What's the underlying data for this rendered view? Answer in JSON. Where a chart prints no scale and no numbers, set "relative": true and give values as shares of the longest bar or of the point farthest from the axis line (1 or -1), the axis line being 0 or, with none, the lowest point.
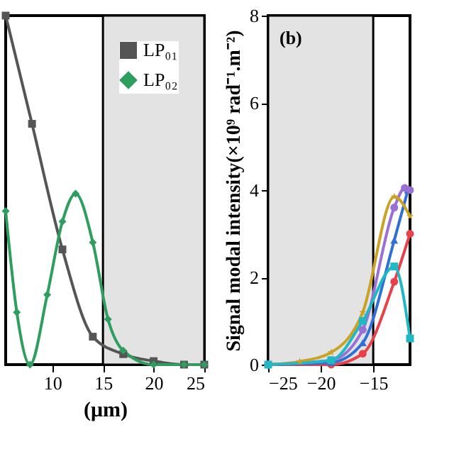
{
  "chart_data": [
    {
      "type": "line",
      "xlabel": "(μm)",
      "relative": true,
      "tick_labels": "x",
      "grid": false,
      "legend": "top right",
      "xlim": [
        5.4,
        25
      ],
      "xticks": [
        10,
        15,
        20,
        25
      ],
      "bands": [
        {
          "axis": "x",
          "from": 15,
          "to": 25,
          "color": "#e3e3e3"
        }
      ],
      "series": [
        {
          "name": "LP₀₁",
          "color": "#555555",
          "marker": "square",
          "line_style": "solid",
          "x": [
            5.4,
            8,
            11,
            14,
            17,
            20,
            23,
            25
          ],
          "values": [
            1,
            0.69,
            0.33,
            0.08,
            0.03,
            0.01,
            0,
            0
          ]
        },
        {
          "name": "LP₀₂",
          "color": "#2e9e5e",
          "marker": "diamond",
          "line_style": "solid",
          "x": [
            5.4,
            6.5,
            7.8,
            9.5,
            11,
            12.3,
            14,
            15.5,
            17,
            20,
            23,
            25
          ],
          "values": [
            0.44,
            0.15,
            0,
            0.2,
            0.41,
            0.49,
            0.35,
            0.13,
            0.04,
            0,
            0,
            0
          ]
        }
      ]
    },
    {
      "type": "line",
      "ylabel": "Signal modal intensity(×10⁹ rad⁻¹.m⁻²)",
      "annotations": [
        "(b)"
      ],
      "grid": false,
      "xlim": [
        -25,
        -11.5
      ],
      "xticks": [
        -25,
        -20,
        -15
      ],
      "ylim": [
        0,
        8
      ],
      "yticks": [
        0,
        2,
        4,
        6,
        8
      ],
      "bands": [
        {
          "axis": "x",
          "from": -25,
          "to": -15,
          "color": "#e3e3e3"
        }
      ],
      "series": [
        {
          "color": "#e8414a",
          "marker": "circle",
          "line_style": "solid",
          "x": [
            -25,
            -19,
            -16,
            -13,
            -11.5
          ],
          "values": [
            0,
            0,
            0.25,
            1.9,
            3.0
          ]
        },
        {
          "color": "#2f6fd6",
          "marker": "triangle",
          "line_style": "solid",
          "x": [
            -25,
            -19,
            -16,
            -13,
            -11.7
          ],
          "values": [
            0,
            0.05,
            0.5,
            2.85,
            4.0
          ]
        },
        {
          "color": "#9a6fd6",
          "marker": "circle",
          "line_style": "solid",
          "x": [
            -25,
            -19,
            -16,
            -13,
            -12,
            -11.5
          ],
          "values": [
            0,
            0.1,
            0.8,
            3.6,
            4.05,
            4.0
          ]
        },
        {
          "color": "#c9a227",
          "marker": "star",
          "line_style": "solid",
          "x": [
            -25,
            -22,
            -19,
            -16,
            -13,
            -11.5
          ],
          "values": [
            0,
            0.07,
            0.28,
            1.2,
            3.85,
            3.4
          ]
        },
        {
          "color": "#1fb8c4",
          "marker": "square",
          "line_style": "solid",
          "x": [
            -25,
            -19,
            -16,
            -13,
            -11.5
          ],
          "values": [
            0,
            0.1,
            1.0,
            2.25,
            0.6
          ]
        }
      ]
    }
  ]
}
